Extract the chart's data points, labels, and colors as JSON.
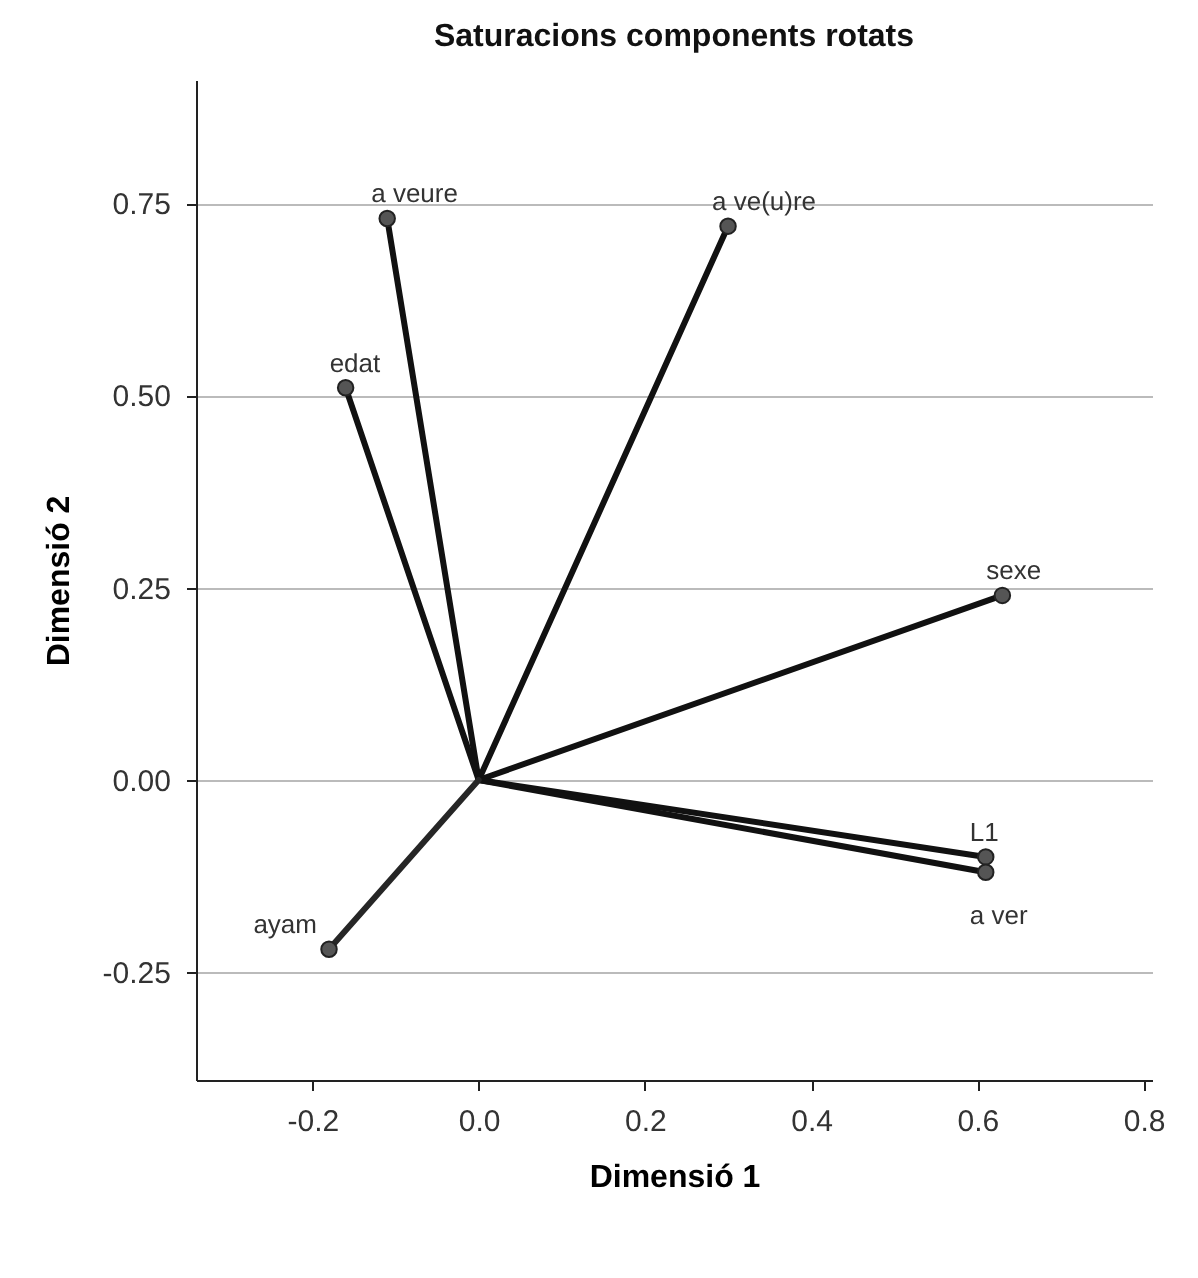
{
  "chart_data": {
    "type": "line",
    "title": "Saturacions components rotats",
    "xlabel": "Dimensió 1",
    "ylabel": "Dimensió 2",
    "xlim": [
      -0.34,
      0.81
    ],
    "xticks": [
      {
        "value": -0.2,
        "label": "-0.2"
      },
      {
        "value": 0,
        "label": "0.0"
      },
      {
        "value": 0.2,
        "label": "0.2"
      },
      {
        "value": 0.4,
        "label": "0.4"
      },
      {
        "value": 0.6,
        "label": "0.6"
      },
      {
        "value": 0.8,
        "label": "0.8"
      }
    ],
    "ylim": [
      -0.39,
      0.91
    ],
    "yticks": [
      {
        "value": -0.25,
        "label": "-0.25"
      },
      {
        "value": 0,
        "label": "0.00"
      },
      {
        "value": 0.25,
        "label": "0.25"
      },
      {
        "value": 0.5,
        "label": "0.50"
      },
      {
        "value": 0.75,
        "label": "0.75"
      }
    ],
    "grid": "y",
    "series": [
      {
        "name": "a veure",
        "color": "#111111",
        "x": [
          0,
          -0.11
        ],
        "values": [
          0,
          0.73
        ]
      },
      {
        "name": "a ve(u)re",
        "color": "#111111",
        "x": [
          0,
          0.3
        ],
        "values": [
          0,
          0.72
        ]
      },
      {
        "name": "edat",
        "color": "#111111",
        "x": [
          0,
          -0.16
        ],
        "values": [
          0,
          0.51
        ]
      },
      {
        "name": "sexe",
        "color": "#111111",
        "x": [
          0,
          0.63
        ],
        "values": [
          0,
          0.24
        ]
      },
      {
        "name": "L1",
        "color": "#111111",
        "x": [
          0,
          0.61
        ],
        "values": [
          0,
          -0.1
        ]
      },
      {
        "name": "a ver",
        "color": "#111111",
        "x": [
          0,
          0.61
        ],
        "values": [
          0,
          -0.12
        ]
      },
      {
        "name": "ayam",
        "color": "#262626",
        "x": [
          0,
          -0.18
        ],
        "values": [
          0,
          -0.22
        ]
      },
      {
        "type": "scatter",
        "color": "#555555",
        "x": [
          -0.11,
          0.3,
          -0.16,
          0.63,
          0.61,
          0.61,
          -0.18
        ],
        "values": [
          0.73,
          0.72,
          0.51,
          0.24,
          -0.1,
          -0.12,
          -0.22
        ],
        "marker": "circle"
      }
    ]
  }
}
